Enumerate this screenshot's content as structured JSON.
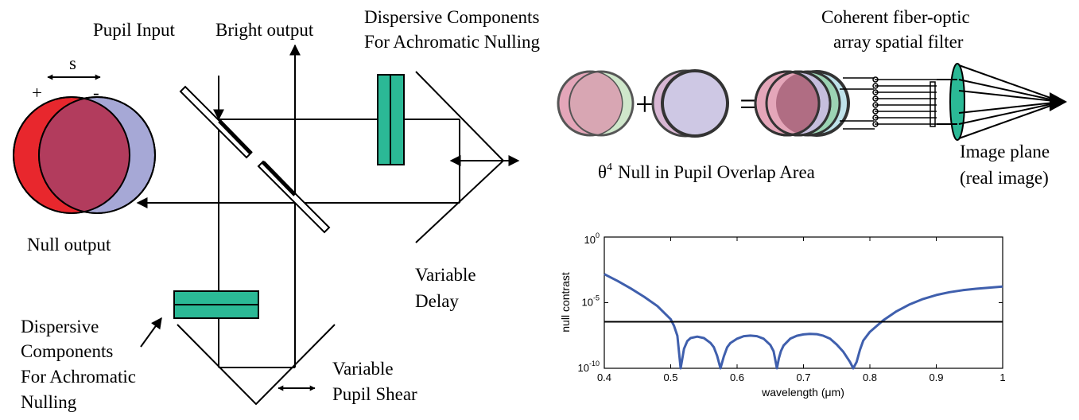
{
  "labels": {
    "pupil_input": "Pupil Input",
    "bright_output": "Bright output",
    "dispersive_top_1": "Dispersive Components",
    "dispersive_top_2": "For Achromatic Nulling",
    "coherent_1": "Coherent fiber-optic",
    "coherent_2": "array spatial filter",
    "shear_s": "s",
    "plus": "+",
    "minus": "-",
    "null_output": "Null output",
    "variable_delay_1": "Variable",
    "variable_delay_2": "Delay",
    "dispersive_bottom_1": "Dispersive",
    "dispersive_bottom_2": "Components",
    "dispersive_bottom_3": "For Achromatic",
    "dispersive_bottom_4": "Nulling",
    "variable_shear_1": "Variable",
    "variable_shear_2": "Pupil Shear",
    "theta_symbol": "θ",
    "theta_power": "4",
    "null_overlap": "Null in Pupil Overlap Area",
    "image_plane_1": "Image plane",
    "image_plane_2": "(real image)",
    "eq_plus": "+",
    "eq_equals": "="
  },
  "colors": {
    "green_component": "#2bb996",
    "red_pupil": "#e8272d",
    "blue_pupil": "#a6a8d6",
    "overlap_pupil": "#b23c5d",
    "curve_blue": "#3f5fad",
    "pink_light": "#e4a6b9",
    "green_light": "#cfe7cb",
    "lilac_light": "#c6bedd",
    "cyan_light": "#bfe2ea"
  },
  "chart_data": {
    "type": "line",
    "title": "",
    "xlabel": "wavelength (μm)",
    "ylabel": "null contrast",
    "xlim": [
      0.4,
      1.0
    ],
    "ylim": [
      1e-10,
      1
    ],
    "yscale": "log",
    "x_ticks": [
      "0.4",
      "0.5",
      "0.6",
      "0.7",
      "0.8",
      "0.9",
      "1"
    ],
    "y_ticks": [
      {
        "base": "10",
        "exp": "0"
      },
      {
        "base": "10",
        "exp": "-5"
      },
      {
        "base": "10",
        "exp": "-10"
      }
    ],
    "series": [
      {
        "color": "#3f5fad",
        "x": [
          0.4,
          0.42,
          0.44,
          0.46,
          0.48,
          0.5,
          0.505,
          0.51,
          0.515,
          0.52,
          0.525,
          0.53,
          0.54,
          0.55,
          0.56,
          0.565,
          0.57,
          0.575,
          0.58,
          0.585,
          0.59,
          0.6,
          0.61,
          0.62,
          0.63,
          0.64,
          0.65,
          0.655,
          0.66,
          0.663,
          0.666,
          0.67,
          0.68,
          0.69,
          0.7,
          0.71,
          0.72,
          0.73,
          0.74,
          0.75,
          0.76,
          0.77,
          0.775,
          0.78,
          0.785,
          0.79,
          0.8,
          0.82,
          0.84,
          0.86,
          0.88,
          0.9,
          0.92,
          0.94,
          0.96,
          0.98,
          1.0
        ],
        "y": [
          0.0015,
          0.00045,
          0.00012,
          2.8e-05,
          5.5e-06,
          5.5e-07,
          1.7e-07,
          3e-08,
          1e-10,
          3e-09,
          1.2e-08,
          2e-08,
          2.6e-08,
          2e-08,
          8.5e-09,
          4e-09,
          9e-10,
          1e-10,
          8e-10,
          4e-09,
          8.5e-09,
          1.8e-08,
          2.8e-08,
          3.1e-08,
          2.8e-08,
          1.8e-08,
          6e-09,
          2e-09,
          1e-10,
          6e-10,
          2e-09,
          5.5e-09,
          1.8e-08,
          3e-08,
          3.8e-08,
          4.2e-08,
          4e-08,
          3e-08,
          1.8e-08,
          6.5e-09,
          1.8e-09,
          3e-10,
          1e-10,
          3e-10,
          2.5e-09,
          1.3e-08,
          6e-08,
          4.5e-07,
          2.2e-06,
          7.5e-06,
          1.9e-05,
          3.8e-05,
          6.3e-05,
          9e-05,
          0.000115,
          0.00014,
          0.00017
        ]
      },
      {
        "color": "#000000",
        "x": [
          0.4,
          1.0
        ],
        "y": [
          3.5e-07,
          3.5e-07
        ]
      }
    ]
  }
}
